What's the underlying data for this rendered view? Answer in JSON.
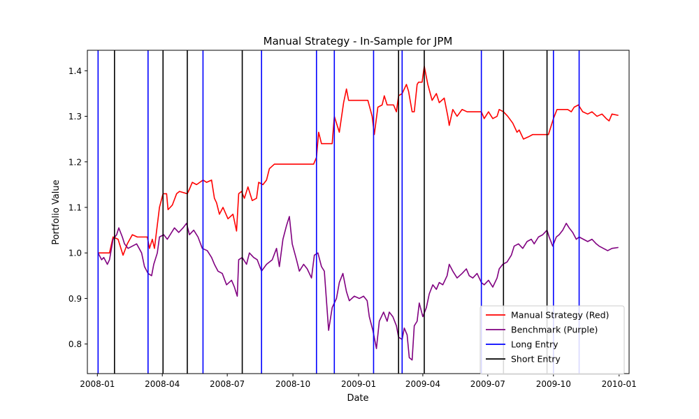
{
  "chart_data": {
    "type": "line",
    "title": "Manual Strategy - In-Sample for JPM",
    "xlabel": "Date",
    "ylabel": "Portfolio Value",
    "x_ticks": [
      "2008-01",
      "2008-04",
      "2008-07",
      "2008-10",
      "2009-01",
      "2009-04",
      "2009-07",
      "2009-10",
      "2010-01"
    ],
    "y_ticks": [
      "0.8",
      "0.9",
      "1.0",
      "1.1",
      "1.2",
      "1.3",
      "1.4"
    ],
    "xlim": [
      "2007-12-18",
      "2010-01-15"
    ],
    "ylim": [
      0.735,
      1.445
    ],
    "grid": false,
    "legend_position": "lower right",
    "series": [
      {
        "name": "Manual Strategy (Red)",
        "color": "#ff0000",
        "points": [
          [
            "2008-01-02",
            1.0
          ],
          [
            "2008-01-18",
            1.0
          ],
          [
            "2008-01-23",
            1.035
          ],
          [
            "2008-01-30",
            1.03
          ],
          [
            "2008-02-06",
            0.995
          ],
          [
            "2008-02-12",
            1.02
          ],
          [
            "2008-02-19",
            1.04
          ],
          [
            "2008-02-26",
            1.035
          ],
          [
            "2008-03-11",
            1.035
          ],
          [
            "2008-03-14",
            1.01
          ],
          [
            "2008-03-18",
            1.03
          ],
          [
            "2008-03-21",
            1.01
          ],
          [
            "2008-03-28",
            1.1
          ],
          [
            "2008-04-02",
            1.13
          ],
          [
            "2008-04-07",
            1.13
          ],
          [
            "2008-04-09",
            1.095
          ],
          [
            "2008-04-15",
            1.105
          ],
          [
            "2008-04-21",
            1.13
          ],
          [
            "2008-04-25",
            1.135
          ],
          [
            "2008-05-06",
            1.13
          ],
          [
            "2008-05-09",
            1.14
          ],
          [
            "2008-05-13",
            1.155
          ],
          [
            "2008-05-19",
            1.15
          ],
          [
            "2008-05-28",
            1.16
          ],
          [
            "2008-06-02",
            1.155
          ],
          [
            "2008-06-09",
            1.16
          ],
          [
            "2008-06-13",
            1.12
          ],
          [
            "2008-06-16",
            1.11
          ],
          [
            "2008-06-20",
            1.085
          ],
          [
            "2008-06-25",
            1.1
          ],
          [
            "2008-07-02",
            1.075
          ],
          [
            "2008-07-09",
            1.085
          ],
          [
            "2008-07-14",
            1.048
          ],
          [
            "2008-07-17",
            1.13
          ],
          [
            "2008-07-21",
            1.135
          ],
          [
            "2008-07-25",
            1.12
          ],
          [
            "2008-07-30",
            1.145
          ],
          [
            "2008-08-05",
            1.115
          ],
          [
            "2008-08-11",
            1.12
          ],
          [
            "2008-08-14",
            1.155
          ],
          [
            "2008-08-20",
            1.15
          ],
          [
            "2008-08-25",
            1.16
          ],
          [
            "2008-08-29",
            1.185
          ],
          [
            "2008-09-05",
            1.195
          ],
          [
            "2008-10-08",
            1.195
          ],
          [
            "2008-10-30",
            1.195
          ],
          [
            "2008-11-03",
            1.21
          ],
          [
            "2008-11-06",
            1.265
          ],
          [
            "2008-11-10",
            1.24
          ],
          [
            "2008-11-25",
            1.24
          ],
          [
            "2008-11-28",
            1.3
          ],
          [
            "2008-12-05",
            1.265
          ],
          [
            "2008-12-11",
            1.33
          ],
          [
            "2008-12-15",
            1.36
          ],
          [
            "2008-12-18",
            1.335
          ],
          [
            "2009-01-09",
            1.335
          ],
          [
            "2009-01-14",
            1.335
          ],
          [
            "2009-01-20",
            1.3
          ],
          [
            "2009-01-23",
            1.26
          ],
          [
            "2009-01-28",
            1.32
          ],
          [
            "2009-02-03",
            1.325
          ],
          [
            "2009-02-06",
            1.345
          ],
          [
            "2009-02-10",
            1.325
          ],
          [
            "2009-02-19",
            1.325
          ],
          [
            "2009-02-23",
            1.31
          ],
          [
            "2009-02-26",
            1.345
          ],
          [
            "2009-03-03",
            1.35
          ],
          [
            "2009-03-09",
            1.37
          ],
          [
            "2009-03-12",
            1.355
          ],
          [
            "2009-03-17",
            1.31
          ],
          [
            "2009-03-20",
            1.31
          ],
          [
            "2009-03-24",
            1.37
          ],
          [
            "2009-03-26",
            1.375
          ],
          [
            "2009-03-31",
            1.375
          ],
          [
            "2009-04-03",
            1.41
          ],
          [
            "2009-04-08",
            1.37
          ],
          [
            "2009-04-14",
            1.335
          ],
          [
            "2009-04-20",
            1.35
          ],
          [
            "2009-04-24",
            1.33
          ],
          [
            "2009-05-01",
            1.34
          ],
          [
            "2009-05-06",
            1.3
          ],
          [
            "2009-05-08",
            1.28
          ],
          [
            "2009-05-13",
            1.315
          ],
          [
            "2009-05-19",
            1.3
          ],
          [
            "2009-05-26",
            1.315
          ],
          [
            "2009-06-02",
            1.31
          ],
          [
            "2009-06-17",
            1.31
          ],
          [
            "2009-06-22",
            1.31
          ],
          [
            "2009-06-26",
            1.295
          ],
          [
            "2009-07-02",
            1.31
          ],
          [
            "2009-07-08",
            1.295
          ],
          [
            "2009-07-14",
            1.3
          ],
          [
            "2009-07-17",
            1.315
          ],
          [
            "2009-07-23",
            1.31
          ],
          [
            "2009-07-29",
            1.3
          ],
          [
            "2009-08-05",
            1.285
          ],
          [
            "2009-08-11",
            1.265
          ],
          [
            "2009-08-14",
            1.27
          ],
          [
            "2009-08-20",
            1.25
          ],
          [
            "2009-08-27",
            1.255
          ],
          [
            "2009-09-02",
            1.26
          ],
          [
            "2009-09-15",
            1.26
          ],
          [
            "2009-09-24",
            1.26
          ],
          [
            "2009-09-28",
            1.28
          ],
          [
            "2009-10-01",
            1.295
          ],
          [
            "2009-10-06",
            1.315
          ],
          [
            "2009-10-12",
            1.315
          ],
          [
            "2009-10-21",
            1.315
          ],
          [
            "2009-10-26",
            1.31
          ],
          [
            "2009-10-30",
            1.32
          ],
          [
            "2009-11-05",
            1.325
          ],
          [
            "2009-11-11",
            1.31
          ],
          [
            "2009-11-18",
            1.305
          ],
          [
            "2009-11-24",
            1.31
          ],
          [
            "2009-12-01",
            1.3
          ],
          [
            "2009-12-08",
            1.305
          ],
          [
            "2009-12-14",
            1.295
          ],
          [
            "2009-12-18",
            1.29
          ],
          [
            "2009-12-22",
            1.305
          ],
          [
            "2009-12-31",
            1.302
          ]
        ]
      },
      {
        "name": "Benchmark (Purple)",
        "color": "#800080",
        "points": [
          [
            "2008-01-02",
            1.0
          ],
          [
            "2008-01-07",
            0.985
          ],
          [
            "2008-01-10",
            0.99
          ],
          [
            "2008-01-15",
            0.975
          ],
          [
            "2008-01-18",
            0.985
          ],
          [
            "2008-01-23",
            1.03
          ],
          [
            "2008-01-28",
            1.04
          ],
          [
            "2008-01-31",
            1.055
          ],
          [
            "2008-02-05",
            1.035
          ],
          [
            "2008-02-08",
            1.02
          ],
          [
            "2008-02-13",
            1.01
          ],
          [
            "2008-02-19",
            1.015
          ],
          [
            "2008-02-25",
            1.02
          ],
          [
            "2008-03-03",
            1.0
          ],
          [
            "2008-03-07",
            0.97
          ],
          [
            "2008-03-12",
            0.955
          ],
          [
            "2008-03-17",
            0.95
          ],
          [
            "2008-03-20",
            0.975
          ],
          [
            "2008-03-25",
            1.0
          ],
          [
            "2008-03-28",
            1.035
          ],
          [
            "2008-04-03",
            1.04
          ],
          [
            "2008-04-08",
            1.03
          ],
          [
            "2008-04-14",
            1.045
          ],
          [
            "2008-04-18",
            1.055
          ],
          [
            "2008-04-24",
            1.045
          ],
          [
            "2008-04-30",
            1.055
          ],
          [
            "2008-05-05",
            1.065
          ],
          [
            "2008-05-09",
            1.04
          ],
          [
            "2008-05-15",
            1.05
          ],
          [
            "2008-05-21",
            1.035
          ],
          [
            "2008-05-27",
            1.01
          ],
          [
            "2008-06-03",
            1.005
          ],
          [
            "2008-06-09",
            0.99
          ],
          [
            "2008-06-13",
            0.975
          ],
          [
            "2008-06-18",
            0.96
          ],
          [
            "2008-06-24",
            0.955
          ],
          [
            "2008-06-30",
            0.93
          ],
          [
            "2008-07-07",
            0.94
          ],
          [
            "2008-07-11",
            0.925
          ],
          [
            "2008-07-15",
            0.905
          ],
          [
            "2008-07-17",
            0.985
          ],
          [
            "2008-07-22",
            0.99
          ],
          [
            "2008-07-28",
            0.975
          ],
          [
            "2008-08-01",
            1.0
          ],
          [
            "2008-08-07",
            0.99
          ],
          [
            "2008-08-12",
            0.985
          ],
          [
            "2008-08-18",
            0.96
          ],
          [
            "2008-08-25",
            0.975
          ],
          [
            "2008-09-02",
            0.985
          ],
          [
            "2008-09-08",
            1.01
          ],
          [
            "2008-09-12",
            0.97
          ],
          [
            "2008-09-17",
            1.03
          ],
          [
            "2008-09-22",
            1.06
          ],
          [
            "2008-09-26",
            1.08
          ],
          [
            "2008-09-30",
            1.02
          ],
          [
            "2008-10-06",
            0.985
          ],
          [
            "2008-10-10",
            0.96
          ],
          [
            "2008-10-16",
            0.975
          ],
          [
            "2008-10-21",
            0.965
          ],
          [
            "2008-10-27",
            0.945
          ],
          [
            "2008-10-31",
            0.995
          ],
          [
            "2008-11-05",
            1.0
          ],
          [
            "2008-11-10",
            0.97
          ],
          [
            "2008-11-14",
            0.96
          ],
          [
            "2008-11-20",
            0.83
          ],
          [
            "2008-11-25",
            0.88
          ],
          [
            "2008-12-01",
            0.9
          ],
          [
            "2008-12-05",
            0.935
          ],
          [
            "2008-12-10",
            0.955
          ],
          [
            "2008-12-15",
            0.915
          ],
          [
            "2008-12-19",
            0.895
          ],
          [
            "2008-12-26",
            0.905
          ],
          [
            "2009-01-02",
            0.9
          ],
          [
            "2009-01-08",
            0.905
          ],
          [
            "2009-01-13",
            0.895
          ],
          [
            "2009-01-16",
            0.86
          ],
          [
            "2009-01-21",
            0.83
          ],
          [
            "2009-01-26",
            0.79
          ],
          [
            "2009-01-30",
            0.85
          ],
          [
            "2009-02-05",
            0.87
          ],
          [
            "2009-02-10",
            0.85
          ],
          [
            "2009-02-13",
            0.87
          ],
          [
            "2009-02-18",
            0.86
          ],
          [
            "2009-02-23",
            0.84
          ],
          [
            "2009-02-26",
            0.815
          ],
          [
            "2009-03-03",
            0.81
          ],
          [
            "2009-03-06",
            0.835
          ],
          [
            "2009-03-10",
            0.82
          ],
          [
            "2009-03-13",
            0.77
          ],
          [
            "2009-03-17",
            0.765
          ],
          [
            "2009-03-20",
            0.84
          ],
          [
            "2009-03-24",
            0.85
          ],
          [
            "2009-03-27",
            0.89
          ],
          [
            "2009-04-01",
            0.86
          ],
          [
            "2009-04-06",
            0.88
          ],
          [
            "2009-04-10",
            0.91
          ],
          [
            "2009-04-15",
            0.93
          ],
          [
            "2009-04-20",
            0.92
          ],
          [
            "2009-04-24",
            0.935
          ],
          [
            "2009-04-29",
            0.93
          ],
          [
            "2009-05-05",
            0.95
          ],
          [
            "2009-05-08",
            0.975
          ],
          [
            "2009-05-13",
            0.96
          ],
          [
            "2009-05-19",
            0.945
          ],
          [
            "2009-05-26",
            0.955
          ],
          [
            "2009-06-01",
            0.965
          ],
          [
            "2009-06-05",
            0.95
          ],
          [
            "2009-06-10",
            0.945
          ],
          [
            "2009-06-16",
            0.955
          ],
          [
            "2009-06-22",
            0.935
          ],
          [
            "2009-06-26",
            0.93
          ],
          [
            "2009-07-02",
            0.94
          ],
          [
            "2009-07-08",
            0.925
          ],
          [
            "2009-07-14",
            0.945
          ],
          [
            "2009-07-17",
            0.965
          ],
          [
            "2009-07-22",
            0.975
          ],
          [
            "2009-07-28",
            0.98
          ],
          [
            "2009-08-03",
            0.995
          ],
          [
            "2009-08-07",
            1.015
          ],
          [
            "2009-08-13",
            1.02
          ],
          [
            "2009-08-19",
            1.01
          ],
          [
            "2009-08-25",
            1.025
          ],
          [
            "2009-08-31",
            1.03
          ],
          [
            "2009-09-04",
            1.02
          ],
          [
            "2009-09-10",
            1.035
          ],
          [
            "2009-09-16",
            1.04
          ],
          [
            "2009-09-22",
            1.05
          ],
          [
            "2009-09-25",
            1.035
          ],
          [
            "2009-09-30",
            1.015
          ],
          [
            "2009-10-05",
            1.035
          ],
          [
            "2009-10-09",
            1.04
          ],
          [
            "2009-10-14",
            1.05
          ],
          [
            "2009-10-19",
            1.065
          ],
          [
            "2009-10-23",
            1.055
          ],
          [
            "2009-10-28",
            1.045
          ],
          [
            "2009-11-02",
            1.03
          ],
          [
            "2009-11-06",
            1.035
          ],
          [
            "2009-11-12",
            1.03
          ],
          [
            "2009-11-18",
            1.025
          ],
          [
            "2009-11-24",
            1.03
          ],
          [
            "2009-11-30",
            1.02
          ],
          [
            "2009-12-04",
            1.015
          ],
          [
            "2009-12-10",
            1.01
          ],
          [
            "2009-12-16",
            1.005
          ],
          [
            "2009-12-22",
            1.01
          ],
          [
            "2009-12-31",
            1.012
          ]
        ]
      }
    ],
    "vlines": [
      {
        "name": "Long Entry",
        "color": "#0000ff",
        "dates": [
          "2008-01-02",
          "2008-03-12",
          "2008-05-28",
          "2008-08-18",
          "2008-11-03",
          "2008-11-28",
          "2009-01-22",
          "2009-03-03",
          "2009-06-22",
          "2009-10-01",
          "2009-11-06"
        ]
      },
      {
        "name": "Short Entry",
        "color": "#000000",
        "dates": [
          "2008-01-25",
          "2008-04-02",
          "2008-05-06",
          "2008-07-22",
          "2009-02-26",
          "2009-04-03",
          "2009-07-23",
          "2009-09-22"
        ]
      }
    ]
  }
}
